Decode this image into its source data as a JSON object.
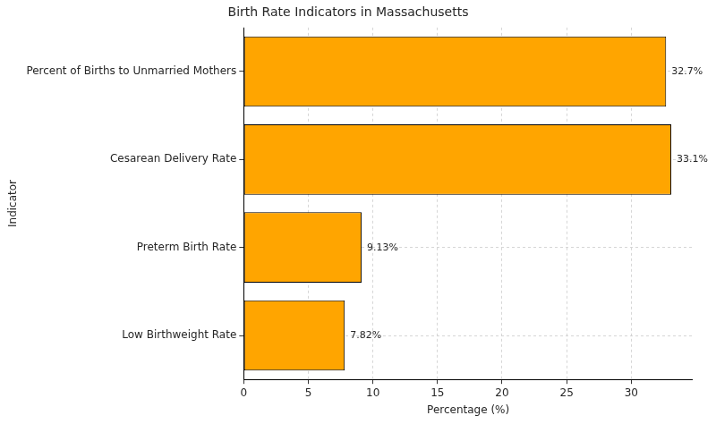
{
  "chart_data": {
    "type": "bar",
    "orientation": "horizontal",
    "title": "Birth Rate Indicators in Massachusetts",
    "x_label": "Percentage (%)",
    "y_label": "Indicator",
    "categories": [
      "Percent of Births to Unmarried Mothers",
      "Cesarean Delivery Rate",
      "Preterm Birth Rate",
      "Low Birthweight Rate"
    ],
    "values": [
      32.7,
      33.1,
      9.13,
      7.82
    ],
    "value_labels": [
      "32.7%",
      "33.1%",
      "9.13%",
      "7.82%"
    ],
    "color": "#ffa500",
    "xlim": [
      0,
      34.76
    ],
    "xticks": [
      0,
      5,
      10,
      15,
      20,
      25,
      30
    ],
    "grid": true,
    "data_labels": true
  }
}
